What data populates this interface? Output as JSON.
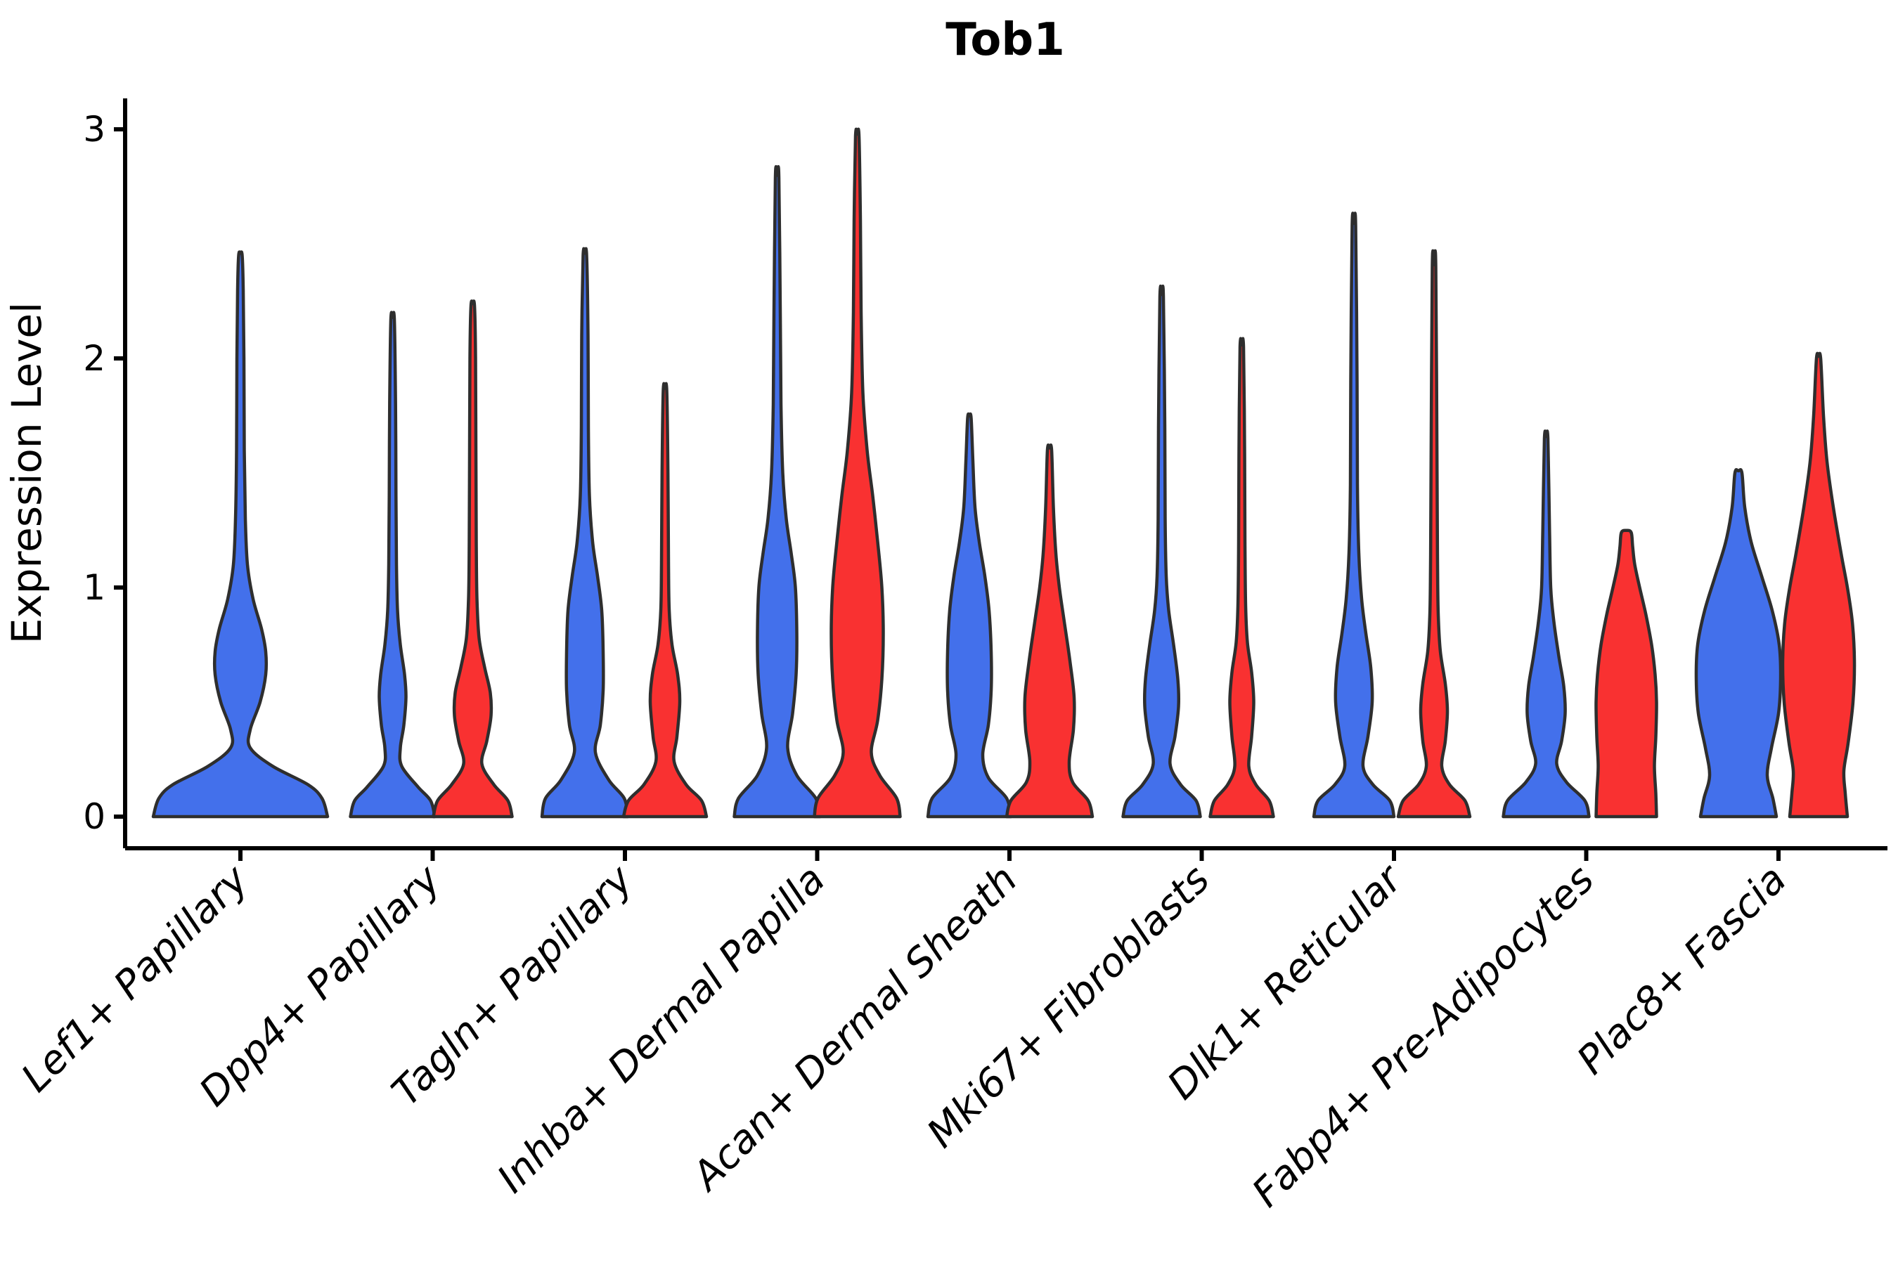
{
  "title": "Tob1",
  "y_axis": {
    "label": "Expression Level",
    "tick_labels": [
      "0",
      "1",
      "2",
      "3"
    ]
  },
  "x_axis": {
    "categories": [
      "Lef1+ Papillary",
      "Dpp4+ Papillary",
      "Tagln+ Papillary",
      "Inhba+ Dermal Papilla",
      "Acan+ Dermal Sheath",
      "Mki67+ Fibroblasts",
      "Dlk1+ Reticular",
      "Fabp4+ Pre-Adipocytes",
      "Plac8+ Fascia"
    ]
  },
  "colors": {
    "blue_fill": "#4370EB",
    "red_fill": "#F93131",
    "violin_outline": "#2E2E2E",
    "axis": "#000000",
    "background": "#FFFFFF"
  },
  "chart_data": {
    "type": "violin",
    "title": "Tob1",
    "xlabel": "",
    "ylabel": "Expression Level",
    "ylim": [
      0,
      3
    ],
    "yticks": [
      0,
      1,
      2,
      3
    ],
    "grid": false,
    "legend": "none",
    "categories": [
      "Lef1+ Papillary",
      "Dpp4+ Papillary",
      "Tagln+ Papillary",
      "Inhba+ Dermal Papilla",
      "Acan+ Dermal Sheath",
      "Mki67+ Fibroblasts",
      "Dlk1+ Reticular",
      "Fabp4+ Pre-Adipocytes",
      "Plac8+ Fascia"
    ],
    "series": [
      {
        "name": "blue",
        "color": "#4370EB"
      },
      {
        "name": "red",
        "color": "#F93131"
      }
    ],
    "profile_units": "[expression_level, kde_half_width_px]",
    "violins": [
      {
        "category_index": 0,
        "series": "blue",
        "side": 0,
        "max": 2.45,
        "profile": [
          [
            0,
            124
          ],
          [
            0.08,
            116
          ],
          [
            0.14,
            96
          ],
          [
            0.22,
            46
          ],
          [
            0.3,
            14
          ],
          [
            0.38,
            14
          ],
          [
            0.5,
            28
          ],
          [
            0.62,
            36
          ],
          [
            0.72,
            36
          ],
          [
            0.82,
            30
          ],
          [
            0.95,
            18
          ],
          [
            1.1,
            10
          ],
          [
            1.3,
            7
          ],
          [
            1.6,
            5.5
          ],
          [
            2.0,
            5
          ],
          [
            2.3,
            4
          ],
          [
            2.45,
            2.5
          ]
        ]
      },
      {
        "category_index": 1,
        "series": "blue",
        "side": -1,
        "max": 2.17,
        "profile": [
          [
            0,
            60
          ],
          [
            0.07,
            54
          ],
          [
            0.13,
            36
          ],
          [
            0.22,
            13
          ],
          [
            0.3,
            11
          ],
          [
            0.4,
            16
          ],
          [
            0.52,
            19
          ],
          [
            0.62,
            17
          ],
          [
            0.75,
            11
          ],
          [
            0.9,
            7
          ],
          [
            1.1,
            5.5
          ],
          [
            1.4,
            4.8
          ],
          [
            1.8,
            4.2
          ],
          [
            2.17,
            2.5
          ]
        ]
      },
      {
        "category_index": 1,
        "series": "red",
        "side": 1,
        "max": 2.23,
        "profile": [
          [
            0,
            56
          ],
          [
            0.07,
            50
          ],
          [
            0.14,
            30
          ],
          [
            0.23,
            13
          ],
          [
            0.33,
            20
          ],
          [
            0.44,
            26
          ],
          [
            0.54,
            25
          ],
          [
            0.65,
            17
          ],
          [
            0.78,
            9
          ],
          [
            0.95,
            6
          ],
          [
            1.2,
            5
          ],
          [
            1.6,
            4.5
          ],
          [
            2.0,
            4
          ],
          [
            2.23,
            2.5
          ]
        ]
      },
      {
        "category_index": 2,
        "series": "blue",
        "side": -1,
        "max": 2.45,
        "profile": [
          [
            0,
            61
          ],
          [
            0.08,
            56
          ],
          [
            0.16,
            34
          ],
          [
            0.28,
            15
          ],
          [
            0.4,
            22
          ],
          [
            0.55,
            26
          ],
          [
            0.72,
            26
          ],
          [
            0.9,
            24
          ],
          [
            1.05,
            18
          ],
          [
            1.2,
            11
          ],
          [
            1.4,
            6.5
          ],
          [
            1.7,
            5
          ],
          [
            2.1,
            4.5
          ],
          [
            2.45,
            2.5
          ]
        ]
      },
      {
        "category_index": 2,
        "series": "red",
        "side": 1,
        "max": 1.86,
        "profile": [
          [
            0,
            59
          ],
          [
            0.07,
            52
          ],
          [
            0.14,
            30
          ],
          [
            0.24,
            13
          ],
          [
            0.35,
            17
          ],
          [
            0.5,
            21
          ],
          [
            0.62,
            18
          ],
          [
            0.75,
            10
          ],
          [
            0.9,
            6
          ],
          [
            1.1,
            5
          ],
          [
            1.5,
            4.2
          ],
          [
            1.86,
            2.5
          ]
        ]
      },
      {
        "category_index": 3,
        "series": "blue",
        "side": -1,
        "max": 2.79,
        "profile": [
          [
            0,
            61
          ],
          [
            0.08,
            55
          ],
          [
            0.18,
            28
          ],
          [
            0.3,
            15
          ],
          [
            0.45,
            22
          ],
          [
            0.62,
            27
          ],
          [
            0.8,
            28
          ],
          [
            1.0,
            26
          ],
          [
            1.15,
            20
          ],
          [
            1.3,
            13
          ],
          [
            1.5,
            8
          ],
          [
            1.8,
            5.5
          ],
          [
            2.2,
            4.5
          ],
          [
            2.79,
            2.5
          ]
        ]
      },
      {
        "category_index": 3,
        "series": "red",
        "side": 1,
        "max": 2.97,
        "profile": [
          [
            0,
            61
          ],
          [
            0.08,
            56
          ],
          [
            0.18,
            32
          ],
          [
            0.28,
            20
          ],
          [
            0.42,
            29
          ],
          [
            0.6,
            35
          ],
          [
            0.8,
            37
          ],
          [
            1.0,
            35
          ],
          [
            1.2,
            29
          ],
          [
            1.4,
            22
          ],
          [
            1.6,
            14
          ],
          [
            1.85,
            8
          ],
          [
            2.2,
            5.5
          ],
          [
            2.6,
            4.5
          ],
          [
            2.97,
            2.5
          ]
        ]
      },
      {
        "category_index": 4,
        "series": "blue",
        "side": -1,
        "max": 1.74,
        "profile": [
          [
            0,
            59
          ],
          [
            0.08,
            53
          ],
          [
            0.17,
            27
          ],
          [
            0.27,
            19
          ],
          [
            0.4,
            27
          ],
          [
            0.55,
            31
          ],
          [
            0.72,
            31
          ],
          [
            0.9,
            28
          ],
          [
            1.05,
            22
          ],
          [
            1.2,
            14
          ],
          [
            1.35,
            8
          ],
          [
            1.55,
            5
          ],
          [
            1.74,
            2.5
          ]
        ]
      },
      {
        "category_index": 4,
        "series": "red",
        "side": 1,
        "max": 1.6,
        "profile": [
          [
            0,
            61
          ],
          [
            0.07,
            55
          ],
          [
            0.15,
            33
          ],
          [
            0.24,
            28
          ],
          [
            0.38,
            34
          ],
          [
            0.52,
            35
          ],
          [
            0.68,
            29
          ],
          [
            0.85,
            21
          ],
          [
            1.0,
            14
          ],
          [
            1.15,
            9
          ],
          [
            1.35,
            5.5
          ],
          [
            1.6,
            3
          ]
        ]
      },
      {
        "category_index": 5,
        "series": "blue",
        "side": -1,
        "max": 2.27,
        "profile": [
          [
            0,
            55
          ],
          [
            0.07,
            49
          ],
          [
            0.14,
            27
          ],
          [
            0.23,
            12
          ],
          [
            0.35,
            19
          ],
          [
            0.48,
            24
          ],
          [
            0.6,
            23
          ],
          [
            0.75,
            17
          ],
          [
            0.9,
            10
          ],
          [
            1.05,
            6.5
          ],
          [
            1.3,
            5
          ],
          [
            1.7,
            4.5
          ],
          [
            2.27,
            2.5
          ]
        ]
      },
      {
        "category_index": 5,
        "series": "red",
        "side": 1,
        "max": 2.05,
        "profile": [
          [
            0,
            45
          ],
          [
            0.07,
            39
          ],
          [
            0.14,
            20
          ],
          [
            0.22,
            10
          ],
          [
            0.35,
            14
          ],
          [
            0.5,
            17
          ],
          [
            0.63,
            14
          ],
          [
            0.76,
            8
          ],
          [
            0.92,
            5.5
          ],
          [
            1.2,
            4.5
          ],
          [
            1.6,
            4
          ],
          [
            2.05,
            2.5
          ]
        ]
      },
      {
        "category_index": 6,
        "series": "blue",
        "side": -1,
        "max": 2.58,
        "profile": [
          [
            0,
            57
          ],
          [
            0.07,
            51
          ],
          [
            0.14,
            27
          ],
          [
            0.22,
            13
          ],
          [
            0.35,
            20
          ],
          [
            0.5,
            26
          ],
          [
            0.65,
            24
          ],
          [
            0.8,
            17
          ],
          [
            0.95,
            11
          ],
          [
            1.15,
            7
          ],
          [
            1.45,
            5
          ],
          [
            1.9,
            4.5
          ],
          [
            2.58,
            2.5
          ]
        ]
      },
      {
        "category_index": 6,
        "series": "red",
        "side": 1,
        "max": 2.4,
        "profile": [
          [
            0,
            51
          ],
          [
            0.07,
            44
          ],
          [
            0.14,
            22
          ],
          [
            0.22,
            11
          ],
          [
            0.33,
            16
          ],
          [
            0.46,
            19
          ],
          [
            0.58,
            16
          ],
          [
            0.72,
            9
          ],
          [
            0.88,
            6
          ],
          [
            1.1,
            5
          ],
          [
            1.5,
            4.3
          ],
          [
            2.4,
            2.5
          ]
        ]
      },
      {
        "category_index": 7,
        "series": "blue",
        "side": -1,
        "max": 1.65,
        "profile": [
          [
            0,
            61
          ],
          [
            0.07,
            55
          ],
          [
            0.15,
            29
          ],
          [
            0.23,
            15
          ],
          [
            0.33,
            22
          ],
          [
            0.45,
            27
          ],
          [
            0.57,
            25
          ],
          [
            0.7,
            18
          ],
          [
            0.85,
            11
          ],
          [
            1.0,
            6.5
          ],
          [
            1.25,
            4.8
          ],
          [
            1.65,
            2.5
          ]
        ]
      },
      {
        "category_index": 7,
        "series": "red",
        "side": 1,
        "max": 1.24,
        "profile": [
          [
            0,
            43
          ],
          [
            0.1,
            42
          ],
          [
            0.22,
            40
          ],
          [
            0.35,
            42
          ],
          [
            0.5,
            43
          ],
          [
            0.62,
            41
          ],
          [
            0.75,
            36
          ],
          [
            0.88,
            28
          ],
          [
            1.0,
            19
          ],
          [
            1.1,
            12
          ],
          [
            1.18,
            9
          ],
          [
            1.24,
            7
          ]
        ]
      },
      {
        "category_index": 8,
        "series": "blue",
        "side": -1,
        "max": 1.5,
        "profile": [
          [
            0,
            54
          ],
          [
            0.08,
            49
          ],
          [
            0.18,
            41
          ],
          [
            0.3,
            47
          ],
          [
            0.45,
            57
          ],
          [
            0.6,
            60
          ],
          [
            0.75,
            58
          ],
          [
            0.9,
            48
          ],
          [
            1.05,
            33
          ],
          [
            1.2,
            18
          ],
          [
            1.35,
            9
          ],
          [
            1.5,
            5
          ]
        ]
      },
      {
        "category_index": 8,
        "series": "red",
        "side": 1,
        "max": 2.0,
        "profile": [
          [
            0,
            41
          ],
          [
            0.1,
            38
          ],
          [
            0.2,
            36
          ],
          [
            0.32,
            42
          ],
          [
            0.5,
            49
          ],
          [
            0.68,
            51
          ],
          [
            0.85,
            48
          ],
          [
            1.0,
            41
          ],
          [
            1.15,
            32
          ],
          [
            1.35,
            21
          ],
          [
            1.55,
            12
          ],
          [
            1.75,
            7
          ],
          [
            2.0,
            3
          ]
        ]
      }
    ]
  }
}
